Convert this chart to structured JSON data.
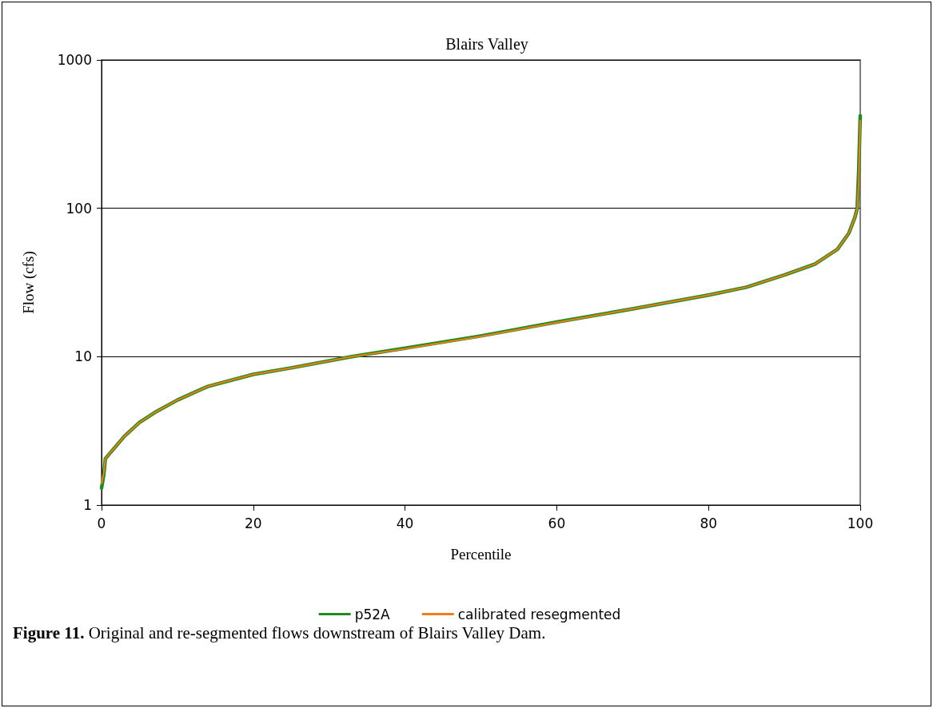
{
  "chart_data": {
    "type": "line",
    "title": "Blairs Valley",
    "xlabel": "Percentile",
    "ylabel": "Flow (cfs)",
    "x": [
      0,
      0.3,
      0.5,
      1,
      3,
      5,
      7,
      10,
      14,
      20,
      25,
      33,
      40,
      50,
      60,
      70,
      80,
      85,
      90,
      94,
      97,
      98.5,
      99.3,
      99.6,
      99.8,
      100
    ],
    "series": [
      {
        "name": "p52A",
        "color": "#1e8c1e",
        "values": [
          1.3,
          1.6,
          2.05,
          2.2,
          2.9,
          3.6,
          4.2,
          5.1,
          6.3,
          7.6,
          8.4,
          10,
          11.4,
          13.8,
          17.1,
          21,
          26,
          29.4,
          35.5,
          42,
          53,
          68,
          87,
          100,
          180,
          420
        ]
      },
      {
        "name": "calibrated resegmented",
        "color": "#f07c1a",
        "values": [
          1.4,
          1.65,
          2.05,
          2.2,
          2.9,
          3.6,
          4.2,
          5.1,
          6.3,
          7.6,
          8.4,
          10,
          11.3,
          13.7,
          17,
          21,
          26,
          29.4,
          35.5,
          42,
          53,
          68,
          87,
          100,
          150,
          390
        ]
      }
    ],
    "xlim": [
      0,
      100
    ],
    "xticks": [
      0,
      20,
      40,
      60,
      80,
      100
    ],
    "ylim": [
      1,
      1000
    ],
    "yticks": [
      1,
      10,
      100,
      1000
    ],
    "log": "y",
    "grid": "y",
    "legend": "bottom",
    "marker": "none",
    "line_style": "solid",
    "annotations": [
      "Figure 11. Original and re-segmented flows downstream of Blairs Valley Dam."
    ]
  }
}
